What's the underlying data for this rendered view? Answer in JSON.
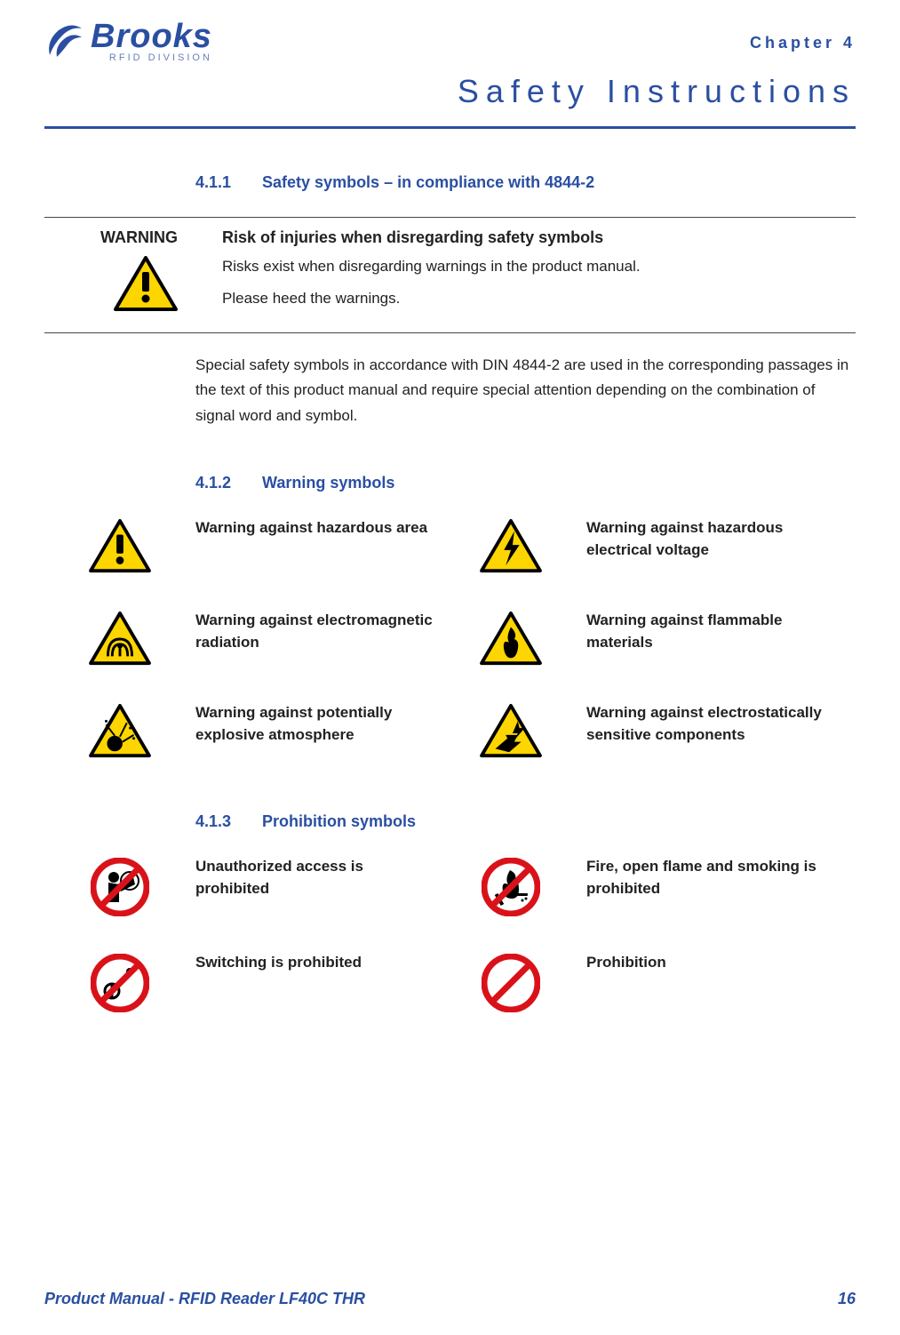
{
  "brand": {
    "name": "Brooks",
    "division": "RFID DIVISION",
    "logo_color": "#2a4fa2"
  },
  "header": {
    "chapter": "Chapter 4",
    "title": "Safety Instructions",
    "rule_color": "#2a4fa2"
  },
  "sections": {
    "s411": {
      "num": "4.1.1",
      "title": "Safety symbols – in compliance with 4844-2"
    },
    "s412": {
      "num": "4.1.2",
      "title": "Warning symbols"
    },
    "s413": {
      "num": "4.1.3",
      "title": "Prohibition symbols"
    }
  },
  "warning_box": {
    "label": "WARNING",
    "heading": "Risk of injuries when disregarding safety symbols",
    "line1": "Risks exist when disregarding warnings in the product manual.",
    "line2": "Please heed the warnings."
  },
  "paragraph": "Special safety symbols in accordance with DIN 4844-2 are used in the corresponding passages in the text of this product manual and require special attention depending on the combination of signal word and symbol.",
  "warning_symbols": [
    {
      "icon": "hazard",
      "label": "Warning against hazardous area"
    },
    {
      "icon": "voltage",
      "label": "Warning against hazardous electrical voltage"
    },
    {
      "icon": "em",
      "label": "Warning against electromagnetic radiation"
    },
    {
      "icon": "flammable",
      "label": "Warning against flammable materials"
    },
    {
      "icon": "explosive",
      "label": "Warning against potentially explosive atmosphere"
    },
    {
      "icon": "esd",
      "label": "Warning against electrostatically sensitive components"
    }
  ],
  "prohibition_symbols": [
    {
      "icon": "noaccess",
      "label": "Unauthorized access is prohibited"
    },
    {
      "icon": "nofire",
      "label": "Fire, open flame and smoking is prohibited"
    },
    {
      "icon": "noswitch",
      "label": "Switching is prohibited"
    },
    {
      "icon": "general",
      "label": "Prohibition"
    }
  ],
  "footer": {
    "left": "Product Manual - RFID Reader LF40C THR",
    "page": "16"
  },
  "colors": {
    "brand": "#2a4fa2",
    "warn_fill": "#fdd500",
    "warn_stroke": "#000000",
    "prohibit_red": "#d9121a",
    "text": "#222222"
  }
}
